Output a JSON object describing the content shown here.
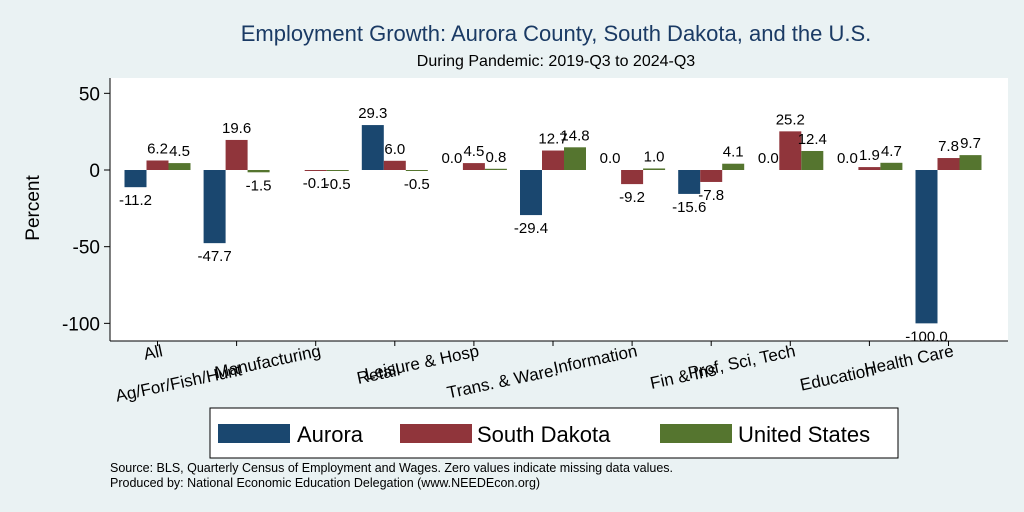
{
  "chart_data": {
    "type": "bar",
    "title": "Employment Growth: Aurora County, South Dakota, and the U.S.",
    "subtitle": "During Pandemic: 2019-Q3 to 2024-Q3",
    "ylabel": "Percent",
    "xlabel": "",
    "ylim": [
      -105,
      55
    ],
    "yticks": [
      50,
      0,
      -50,
      -100
    ],
    "grid": false,
    "legend_position": "bottom",
    "categories": [
      "All",
      "Ag/For/Fish/Hunt",
      "Manufacturing",
      "Retail",
      "Leisure & Hosp",
      "Trans. & Ware.",
      "Information",
      "Fin & Ins",
      "Prof, Sci, Tech",
      "Education",
      "Health Care"
    ],
    "series": [
      {
        "name": "Aurora",
        "color": "#1a476f",
        "values": [
          -11.2,
          -47.7,
          0.0,
          29.3,
          0.0,
          -29.4,
          0.0,
          -15.6,
          0.0,
          0.0,
          -100.0
        ],
        "labels": [
          "-11.2",
          "-47.7",
          "",
          "29.3",
          "0.0",
          "-29.4",
          "0.0",
          "-15.6",
          "0.0",
          "0.0",
          "-100.0"
        ]
      },
      {
        "name": "South Dakota",
        "color": "#90353b",
        "values": [
          6.2,
          19.6,
          -0.1,
          6.0,
          4.5,
          12.7,
          -9.2,
          -7.8,
          25.2,
          1.9,
          7.8
        ],
        "labels": [
          "6.2",
          "19.6",
          "-0.1",
          "6.0",
          "4.5",
          "12.7",
          "-9.2",
          "-7.8",
          "25.2",
          "1.9",
          "7.8"
        ]
      },
      {
        "name": "United States",
        "color": "#55752f",
        "values": [
          4.5,
          -1.5,
          -0.5,
          -0.5,
          0.8,
          14.8,
          1.0,
          4.1,
          12.4,
          4.7,
          9.7
        ],
        "labels": [
          "4.5",
          "-1.5",
          "-0.5",
          "-0.5",
          "0.8",
          "14.8",
          "1.0",
          "4.1",
          "12.4",
          "4.7",
          "9.7"
        ]
      }
    ],
    "notes": [
      "Source: BLS, Quarterly Census of Employment and Wages. Zero values indicate missing data values.",
      "Produced by: National Economic Education Delegation (www.NEEDEcon.org)"
    ]
  }
}
